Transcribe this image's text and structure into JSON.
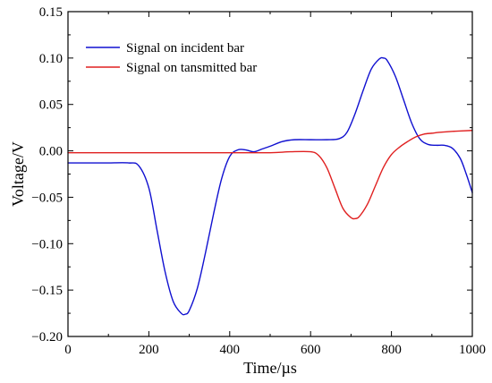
{
  "chart_data": {
    "type": "line",
    "title": "",
    "xlabel": "Time/µs",
    "ylabel": "Voltage/V",
    "xlim": [
      0,
      1000
    ],
    "ylim": [
      -0.2,
      0.15
    ],
    "xticks": [
      0,
      200,
      400,
      600,
      800,
      1000
    ],
    "yticks": [
      -0.2,
      -0.15,
      -0.1,
      -0.05,
      0.0,
      0.05,
      0.1,
      0.15
    ],
    "xtick_labels": [
      "0",
      "200",
      "400",
      "600",
      "800",
      "1000"
    ],
    "ytick_labels": [
      "−0.20",
      "−0.15",
      "−0.10",
      "−0.05",
      "0.00",
      "0.05",
      "0.10",
      "0.15"
    ],
    "grid": false,
    "legend_position": "top-left",
    "series": [
      {
        "name": "Signal on incident bar",
        "color": "#1010d0",
        "x": [
          0,
          50,
          100,
          150,
          175,
          200,
          220,
          240,
          260,
          280,
          290,
          300,
          320,
          340,
          360,
          380,
          400,
          420,
          440,
          460,
          480,
          500,
          530,
          560,
          600,
          640,
          670,
          690,
          710,
          730,
          750,
          770,
          780,
          790,
          810,
          830,
          850,
          870,
          890,
          910,
          930,
          950,
          970,
          985,
          1000
        ],
        "y": [
          -0.013,
          -0.013,
          -0.013,
          -0.013,
          -0.016,
          -0.04,
          -0.085,
          -0.13,
          -0.162,
          -0.175,
          -0.176,
          -0.172,
          -0.148,
          -0.11,
          -0.068,
          -0.03,
          -0.006,
          0.001,
          0.001,
          -0.001,
          0.002,
          0.005,
          0.01,
          0.012,
          0.012,
          0.012,
          0.013,
          0.02,
          0.04,
          0.065,
          0.088,
          0.099,
          0.1,
          0.097,
          0.08,
          0.055,
          0.03,
          0.013,
          0.007,
          0.006,
          0.006,
          0.003,
          -0.008,
          -0.025,
          -0.045
        ]
      },
      {
        "name": "Signal on tansmitted bar",
        "color": "#e02020",
        "x": [
          0,
          100,
          200,
          300,
          400,
          500,
          550,
          600,
          620,
          640,
          660,
          680,
          700,
          710,
          720,
          740,
          760,
          780,
          800,
          820,
          840,
          860,
          880,
          900,
          920,
          950,
          1000
        ],
        "y": [
          -0.002,
          -0.002,
          -0.002,
          -0.002,
          -0.002,
          -0.002,
          -0.001,
          -0.001,
          -0.005,
          -0.018,
          -0.04,
          -0.062,
          -0.072,
          -0.073,
          -0.071,
          -0.058,
          -0.038,
          -0.018,
          -0.004,
          0.004,
          0.01,
          0.015,
          0.018,
          0.019,
          0.02,
          0.021,
          0.022
        ]
      }
    ]
  }
}
